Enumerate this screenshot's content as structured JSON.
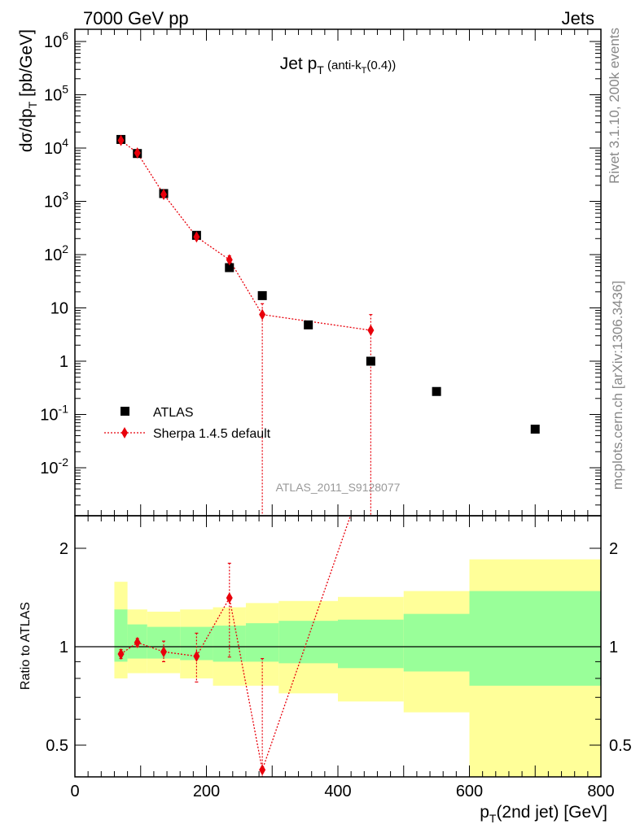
{
  "header": {
    "left": "7000 GeV pp",
    "right": "Jets"
  },
  "side": {
    "rivet": "Rivet 3.1.10,  200k events",
    "mcplots": "mcplots.cern.ch [arXiv:1306.3436]"
  },
  "chart_data": [
    {
      "type": "scatter",
      "panel": "main",
      "title": "Jet p_T (anti-k_T(0.4))",
      "ylabel": "dσ/dp_T [pb/GeV]",
      "yscale": "log",
      "xlim": [
        0,
        800
      ],
      "ylim": [
        0.0012,
        1800000
      ],
      "yticks": [
        "10^-2",
        "10^-1",
        "1",
        "10",
        "10^2",
        "10^3",
        "10^4",
        "10^5",
        "10^6"
      ],
      "watermark": "ATLAS_2011_S9128077",
      "legend": {
        "position": "bottom-left",
        "entries": [
          "ATLAS",
          "Sherpa 1.4.5 default"
        ]
      },
      "series": [
        {
          "name": "ATLAS",
          "marker": "square",
          "color": "#000000",
          "x": [
            70,
            95,
            135,
            185,
            235,
            285,
            355,
            450,
            550,
            700
          ],
          "y": [
            14500,
            7900,
            1400,
            230,
            57,
            17,
            4.8,
            1.0,
            0.27,
            0.053
          ]
        },
        {
          "name": "Sherpa 1.4.5 default",
          "marker": "diamond",
          "color": "#e8000b",
          "x": [
            70,
            95,
            135,
            185,
            235,
            285,
            450
          ],
          "y": [
            13900,
            8100,
            1350,
            215,
            80,
            7.5,
            3.8
          ],
          "yerr_low": [
            12800,
            7600,
            1250,
            180,
            65,
            0.0001,
            0.0001
          ],
          "yerr_high": [
            15000,
            8600,
            1450,
            250,
            95,
            12,
            7.5
          ]
        }
      ]
    },
    {
      "type": "line",
      "panel": "ratio",
      "ylabel": "Ratio to ATLAS",
      "xlabel": "p_T(2nd jet) [GeV]",
      "yscale": "log",
      "xlim": [
        0,
        800
      ],
      "ylim": [
        0.36,
        2.3
      ],
      "yticks": [
        "0.5",
        "1",
        "2"
      ],
      "xticks": [
        "0",
        "200",
        "400",
        "600",
        "800"
      ],
      "bands": {
        "edges": [
          60,
          80,
          110,
          160,
          210,
          260,
          310,
          400,
          500,
          600,
          800
        ],
        "stat_low": [
          0.9,
          0.92,
          0.92,
          0.91,
          0.9,
          0.9,
          0.89,
          0.86,
          0.84,
          0.76
        ],
        "stat_high": [
          1.3,
          1.17,
          1.15,
          1.15,
          1.16,
          1.18,
          1.2,
          1.21,
          1.26,
          1.48
        ],
        "total_low": [
          0.8,
          0.83,
          0.83,
          0.8,
          0.76,
          0.76,
          0.72,
          0.68,
          0.63,
          0.4
        ],
        "total_high": [
          1.58,
          1.3,
          1.28,
          1.3,
          1.32,
          1.36,
          1.38,
          1.42,
          1.48,
          1.85
        ]
      },
      "series": [
        {
          "name": "Sherpa 1.4.5 default",
          "color": "#e8000b",
          "x": [
            70,
            95,
            135,
            185,
            235,
            285,
            450
          ],
          "y": [
            0.95,
            1.03,
            0.965,
            0.935,
            1.41,
            0.42,
            3.8
          ],
          "yerr_low": [
            0.92,
            1.0,
            0.9,
            0.78,
            0.93,
            0.3,
            3.0
          ],
          "yerr_high": [
            0.98,
            1.06,
            1.04,
            1.1,
            1.8,
            0.92,
            4.5
          ]
        }
      ]
    }
  ]
}
